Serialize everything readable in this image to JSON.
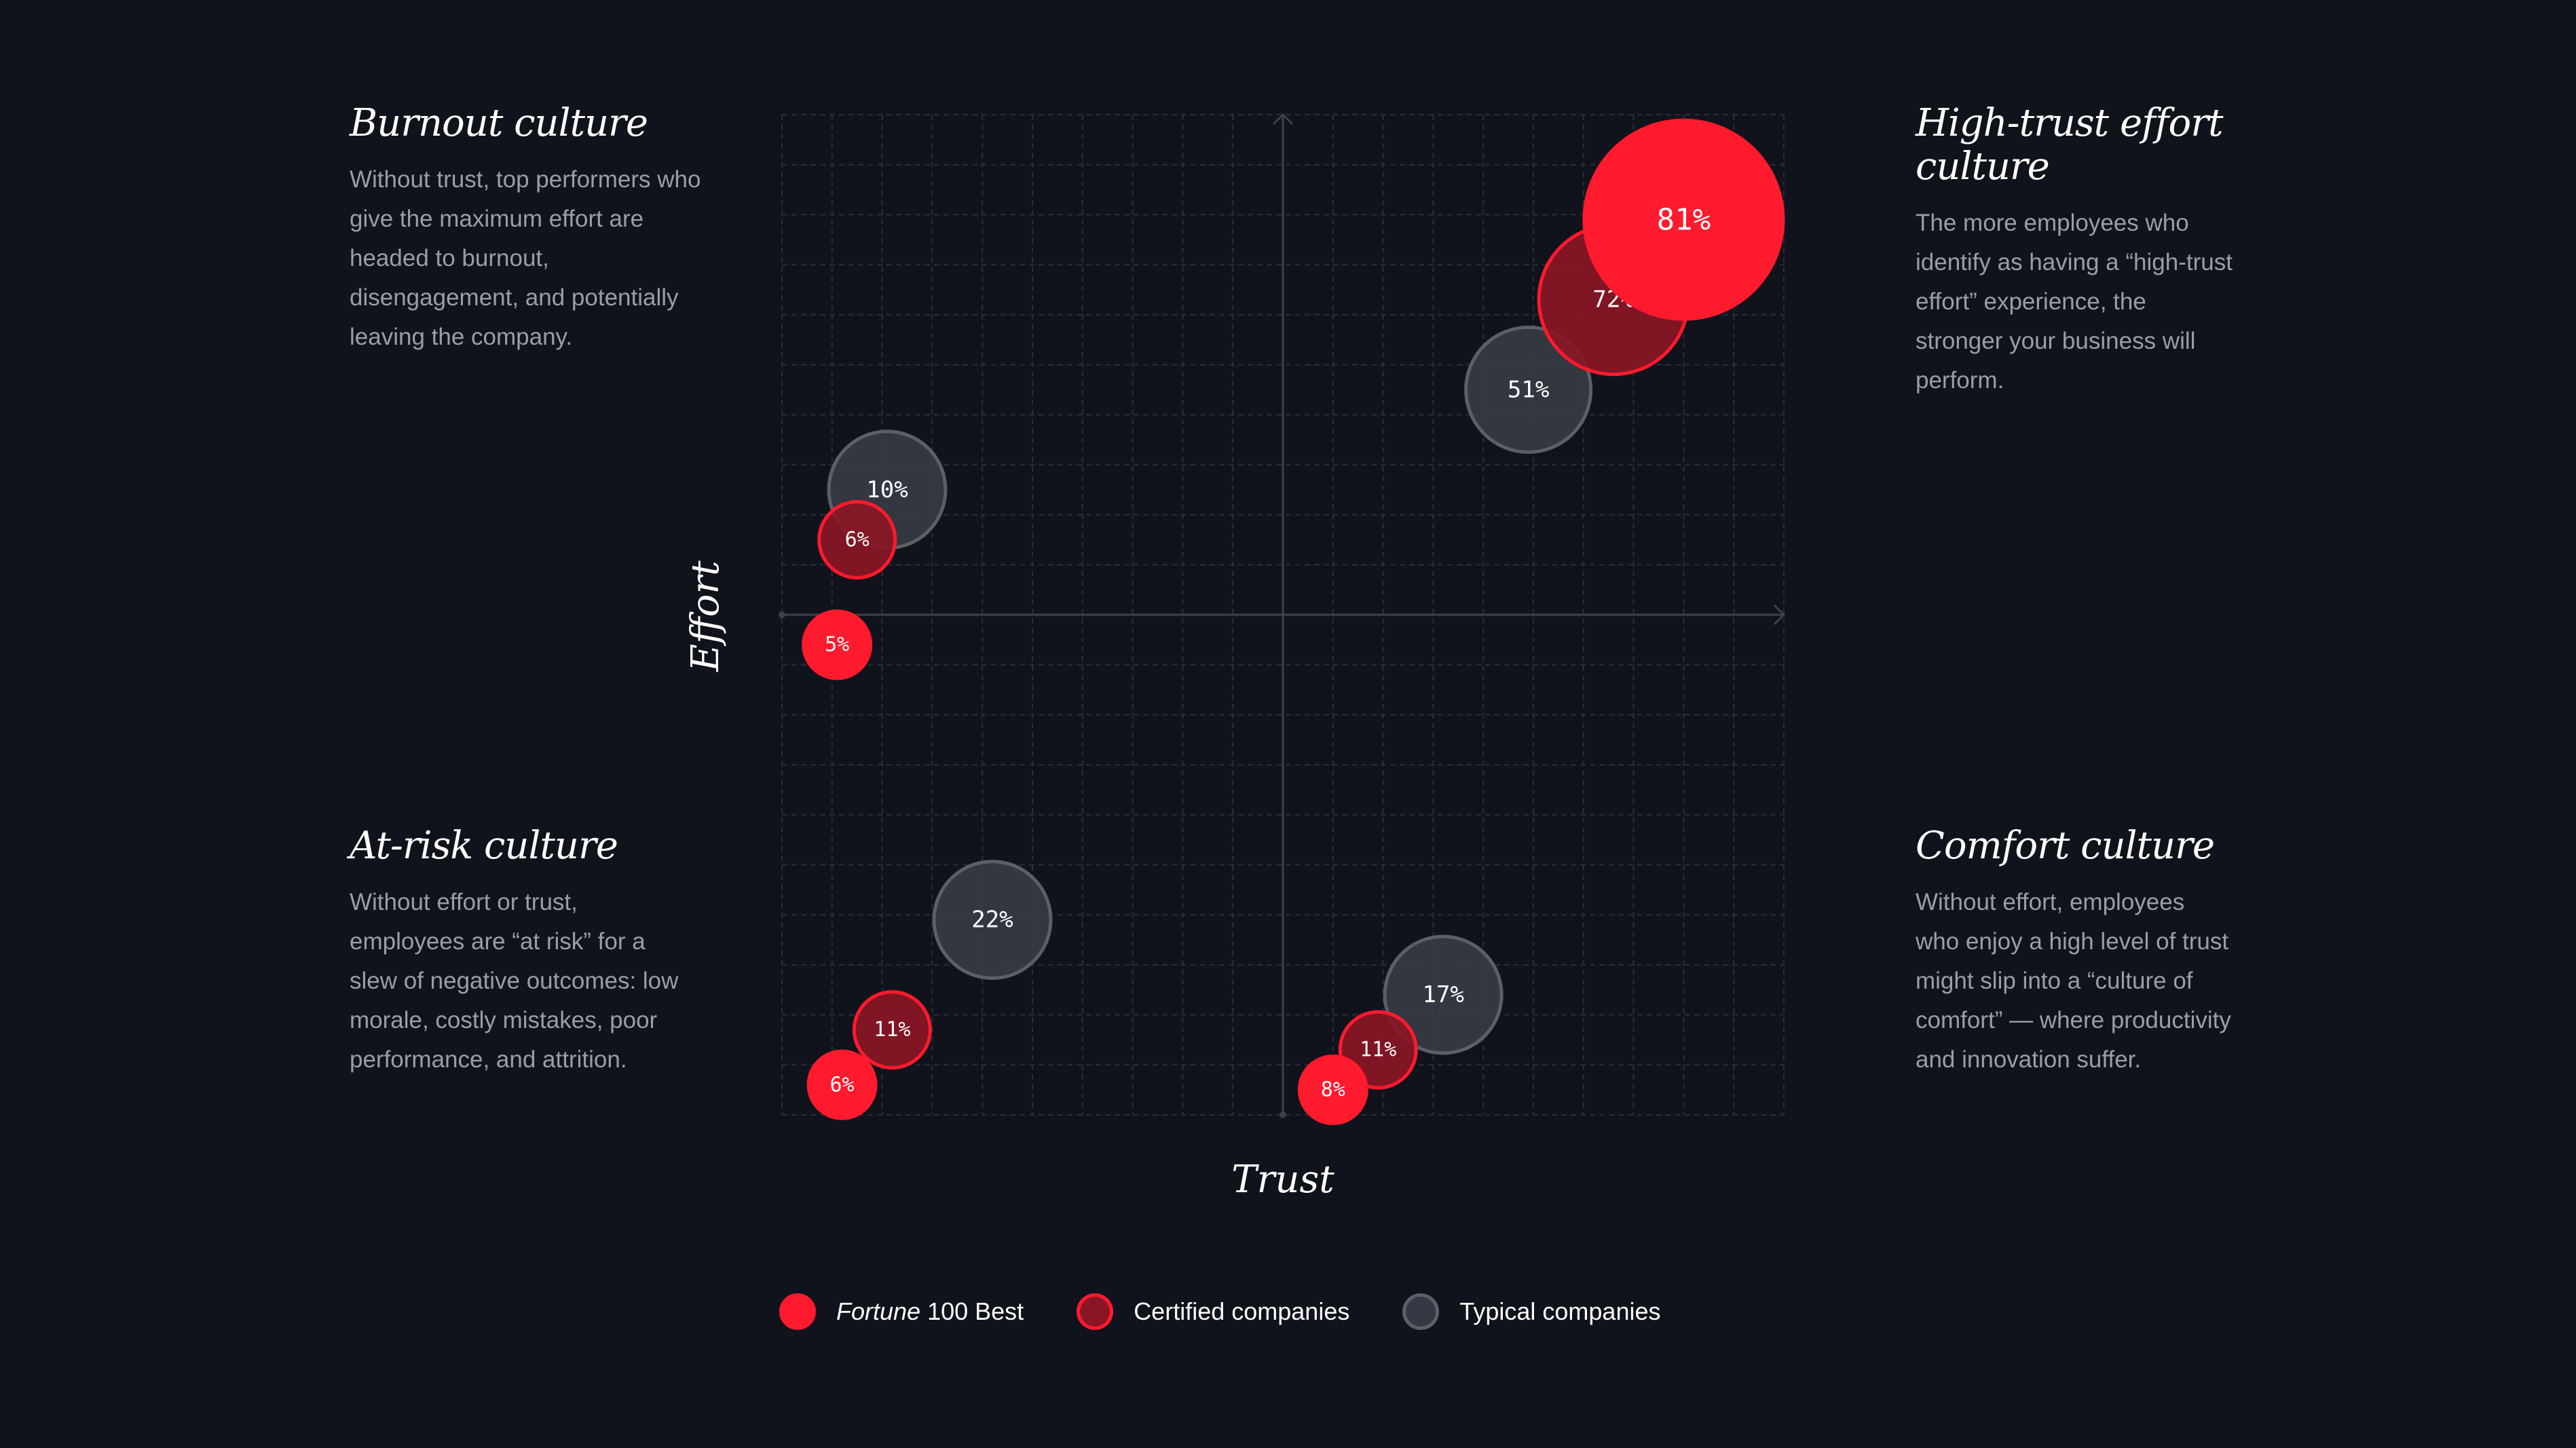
{
  "quadrants": {
    "top_left": {
      "title": "Burnout culture",
      "body": "Without trust, top performers who give the maximum effort are headed to burnout, disengagement, and potentially leaving the company."
    },
    "top_right": {
      "title": "High-trust effort culture",
      "body": "The more employees who identify as having a “high-trust effort” experience, the stronger your business will perform."
    },
    "bottom_left": {
      "title": "At-risk culture",
      "body": "Without effort or trust, employees are “at risk” for a slew of negative outcomes: low morale, costly mistakes, poor performance, and attrition."
    },
    "bottom_right": {
      "title": "Comfort culture",
      "body": "Without effort, employees who enjoy a high level of trust might slip into a “culture of comfort” — where productivity and innovation suffer."
    }
  },
  "legend": {
    "fortune_italic": "Fortune",
    "fortune_rest": " 100 Best",
    "certified": "Certified companies",
    "typical": "Typical companies"
  },
  "chart_data": {
    "type": "scatter",
    "subtype": "bubble-quadrant",
    "xlabel": "Trust",
    "ylabel": "Effort",
    "xlim": [
      -10,
      10
    ],
    "ylim": [
      -10,
      10
    ],
    "grid": true,
    "legend_position": "bottom",
    "colors": {
      "fortune": "#ff1a2e",
      "certified_fill": "#8a1625",
      "certified_stroke": "#ff1a2e",
      "typical_fill": "#3a3e47",
      "typical_stroke": "#5a5f68"
    },
    "series": [
      {
        "name": "Fortune 100 Best",
        "key": "fortune",
        "points": [
          {
            "quadrant": "High-trust effort culture",
            "x": 8.0,
            "y": 7.9,
            "value": "81%",
            "pct": 81
          },
          {
            "quadrant": "Burnout culture",
            "x": -8.9,
            "y": -0.6,
            "value": "5%",
            "pct": 5
          },
          {
            "quadrant": "At-risk culture",
            "x": -8.8,
            "y": -9.4,
            "value": "6%",
            "pct": 6
          },
          {
            "quadrant": "Comfort culture",
            "x": 1.0,
            "y": -9.5,
            "value": "8%",
            "pct": 8
          }
        ]
      },
      {
        "name": "Certified companies",
        "key": "certified",
        "points": [
          {
            "quadrant": "High-trust effort culture",
            "x": 6.6,
            "y": 6.3,
            "value": "72%",
            "pct": 72
          },
          {
            "quadrant": "Burnout culture",
            "x": -8.5,
            "y": 1.5,
            "value": "6%",
            "pct": 6
          },
          {
            "quadrant": "At-risk culture",
            "x": -7.8,
            "y": -8.3,
            "value": "11%",
            "pct": 11
          },
          {
            "quadrant": "Comfort culture",
            "x": 1.9,
            "y": -8.7,
            "value": "11%",
            "pct": 11
          }
        ]
      },
      {
        "name": "Typical companies",
        "key": "typical",
        "points": [
          {
            "quadrant": "High-trust effort culture",
            "x": 4.9,
            "y": 4.5,
            "value": "51%",
            "pct": 51
          },
          {
            "quadrant": "Burnout culture",
            "x": -7.9,
            "y": 2.5,
            "value": "10%",
            "pct": 10
          },
          {
            "quadrant": "At-risk culture",
            "x": -5.8,
            "y": -6.1,
            "value": "22%",
            "pct": 22
          },
          {
            "quadrant": "Comfort culture",
            "x": 3.2,
            "y": -7.6,
            "value": "17%",
            "pct": 17
          }
        ]
      }
    ]
  }
}
